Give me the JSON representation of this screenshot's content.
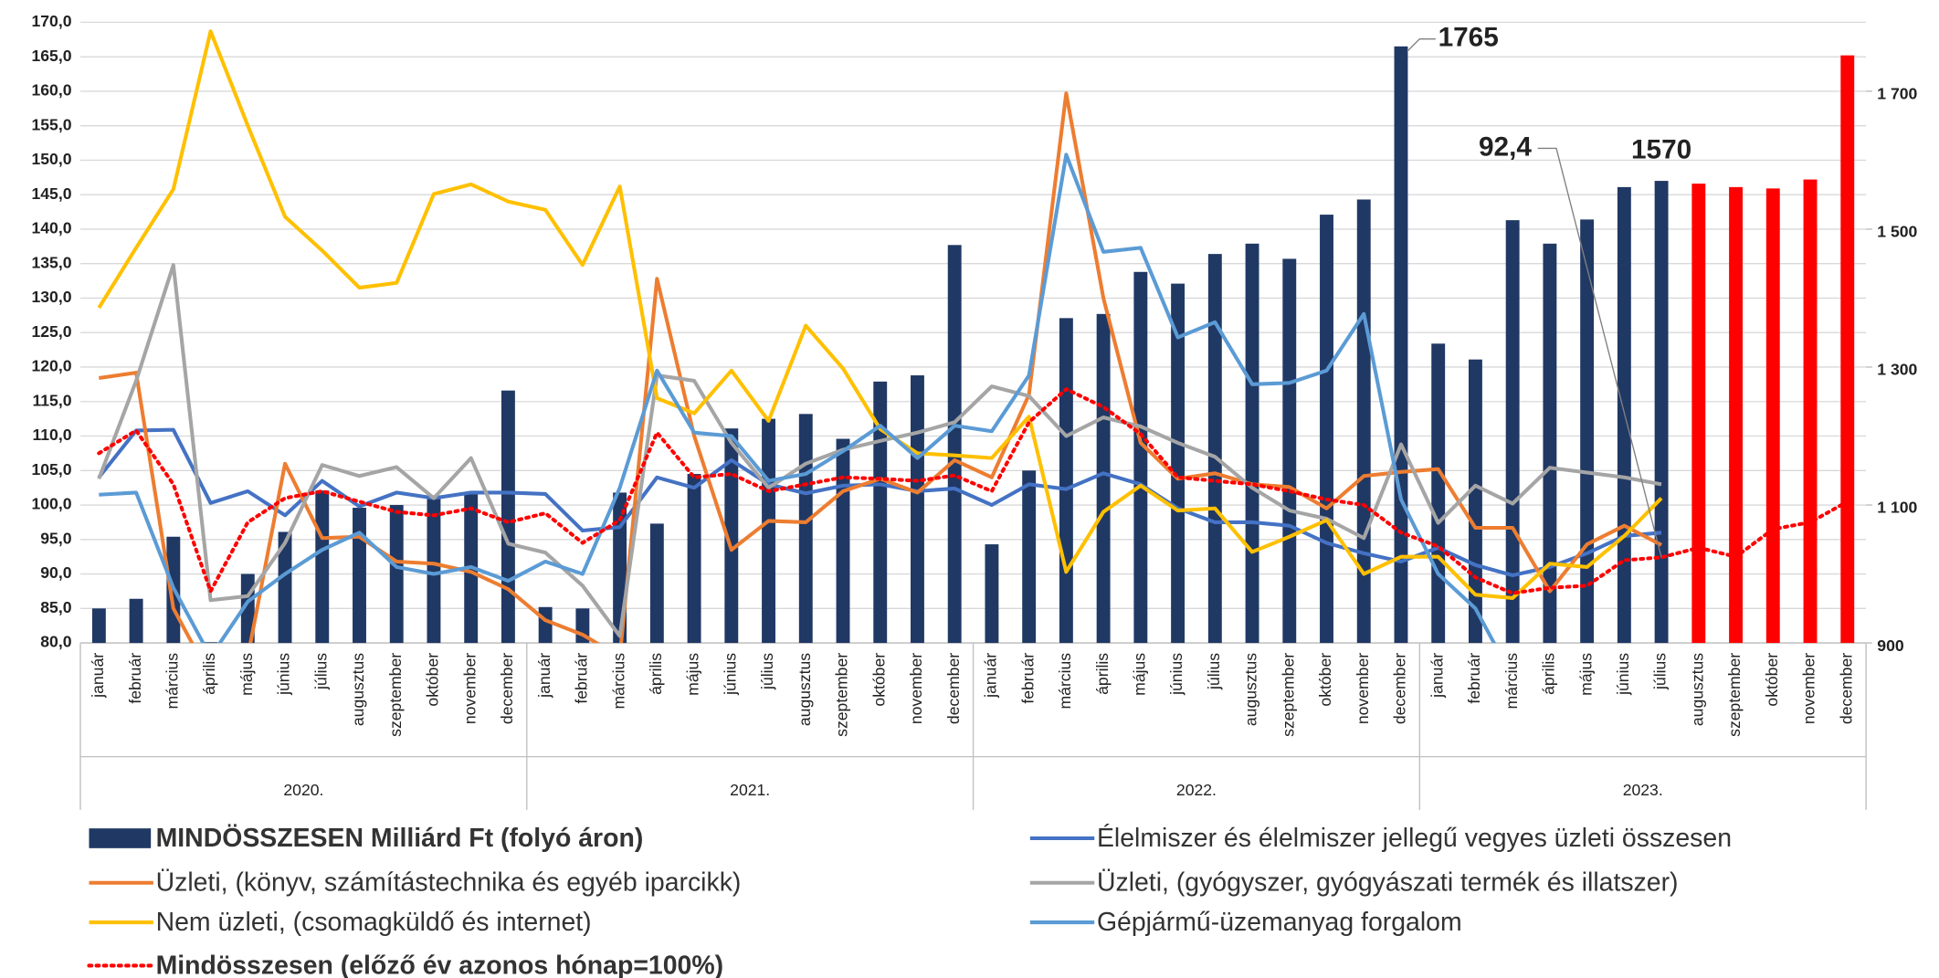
{
  "chart_data": {
    "type": "combo",
    "categories": [
      "január",
      "február",
      "március",
      "április",
      "május",
      "június",
      "július",
      "augusztus",
      "szeptember",
      "október",
      "november",
      "december",
      "január",
      "február",
      "március",
      "április",
      "május",
      "június",
      "július",
      "augusztus",
      "szeptember",
      "október",
      "november",
      "december",
      "január",
      "február",
      "március",
      "április",
      "május",
      "június",
      "július",
      "augusztus",
      "szeptember",
      "október",
      "november",
      "december",
      "január",
      "február",
      "március",
      "április",
      "május",
      "június",
      "július",
      "augusztus",
      "szeptember",
      "október",
      "november",
      "december"
    ],
    "category_groups": [
      "2020.",
      "2021.",
      "2022.",
      "2023."
    ],
    "ylim": [
      80,
      170
    ],
    "yticks": [
      {
        "value": 80,
        "label": "80,0"
      },
      {
        "value": 85,
        "label": "85,0"
      },
      {
        "value": 90,
        "label": "90,0"
      },
      {
        "value": 95,
        "label": "95,0"
      },
      {
        "value": 100,
        "label": "100,0"
      },
      {
        "value": 105,
        "label": "105,0"
      },
      {
        "value": 110,
        "label": "110,0"
      },
      {
        "value": 115,
        "label": "115,0"
      },
      {
        "value": 120,
        "label": "120,0"
      },
      {
        "value": 125,
        "label": "125,0"
      },
      {
        "value": 130,
        "label": "130,0"
      },
      {
        "value": 135,
        "label": "135,0"
      },
      {
        "value": 140,
        "label": "140,0"
      },
      {
        "value": 145,
        "label": "145,0"
      },
      {
        "value": 150,
        "label": "150,0"
      },
      {
        "value": 155,
        "label": "155,0"
      },
      {
        "value": 160,
        "label": "160,0"
      },
      {
        "value": 165,
        "label": "165,0"
      },
      {
        "value": 170,
        "label": "170,0"
      }
    ],
    "y2lim": [
      900,
      1800
    ],
    "y2ticks": [
      900,
      {
        "value": 1100,
        "label": "1 100"
      },
      {
        "value": 1300,
        "label": "1 300"
      },
      {
        "value": 1500,
        "label": "1 500"
      },
      {
        "value": 1700,
        "label": "1 700"
      }
    ],
    "grid": true,
    "series": [
      {
        "name": "MINDÖSSZESEN Milliárd Ft (folyó áron)",
        "type": "bar",
        "axis": "y2",
        "color": "#203864",
        "colors": [
          "#203864",
          "#203864",
          "#203864",
          "#203864",
          "#203864",
          "#203864",
          "#203864",
          "#203864",
          "#203864",
          "#203864",
          "#203864",
          "#203864",
          "#203864",
          "#203864",
          "#203864",
          "#203864",
          "#203864",
          "#203864",
          "#203864",
          "#203864",
          "#203864",
          "#203864",
          "#203864",
          "#203864",
          "#203864",
          "#203864",
          "#203864",
          "#203864",
          "#203864",
          "#203864",
          "#203864",
          "#203864",
          "#203864",
          "#203864",
          "#203864",
          "#203864",
          "#203864",
          "#203864",
          "#203864",
          "#203864",
          "#203864",
          "#203864",
          "#203864",
          "#ff0000",
          "#ff0000",
          "#ff0000",
          "#ff0000",
          "#ff0000"
        ],
        "values": [
          950,
          964,
          1054,
          901,
          1000,
          1061,
          1121,
          1096,
          1100,
          1114,
          1118,
          1266,
          952,
          950,
          1118,
          1073,
          1145,
          1211,
          1225,
          1232,
          1196,
          1279,
          1288,
          1477,
          1043,
          1150,
          1371,
          1377,
          1438,
          1421,
          1464,
          1479,
          1457,
          1521,
          1543,
          1765,
          1334,
          1311,
          1513,
          1479,
          1514,
          1561,
          1570,
          1566,
          1561,
          1559,
          1572,
          1752
        ],
        "value_labels": [
          null,
          null,
          null,
          null,
          null,
          null,
          null,
          null,
          null,
          null,
          null,
          null,
          null,
          null,
          null,
          null,
          null,
          null,
          null,
          null,
          null,
          null,
          null,
          null,
          null,
          null,
          null,
          null,
          null,
          null,
          null,
          null,
          null,
          null,
          null,
          "1765",
          null,
          null,
          null,
          null,
          null,
          null,
          "1570",
          null,
          null,
          null,
          null,
          null
        ]
      },
      {
        "name": "Élelmiszer és élelmiszer jellegű vegyes üzleti összesen",
        "type": "line",
        "color": "#4472c4",
        "values": [
          104,
          110.8,
          110.9,
          100.3,
          102,
          98.5,
          103.5,
          99.8,
          101.8,
          101,
          101.8,
          101.8,
          101.6,
          96.3,
          96.8,
          104,
          102.5,
          106.5,
          103,
          101.7,
          102.8,
          103,
          102,
          102.4,
          100,
          103,
          102.3,
          104.6,
          103,
          99.5,
          97.5,
          97.5,
          97,
          94.5,
          93,
          91.8,
          93.8,
          91.3,
          89.8,
          91,
          93,
          95.5,
          96,
          null,
          null,
          null,
          null,
          null
        ]
      },
      {
        "name": " Üzleti, (könyv, számítástechnika és egyéb iparcikk)",
        "type": "line",
        "color": "#ed7d31",
        "values": [
          118.4,
          119.2,
          85,
          75,
          78,
          106,
          95.2,
          95.4,
          91.8,
          91.5,
          90.3,
          87.8,
          83.3,
          81.2,
          78,
          132.8,
          110,
          93.5,
          97.7,
          97.5,
          102,
          103.8,
          101.8,
          106.5,
          104,
          116,
          159.7,
          130,
          109,
          103.8,
          104.6,
          103,
          102.6,
          99.5,
          104.2,
          104.8,
          105.2,
          96.7,
          96.7,
          87.5,
          94.3,
          97,
          94.2,
          null,
          null,
          null,
          null,
          null
        ]
      },
      {
        "name": "Üzleti, (gyógyszer, gyógyászati termék és illatszer)",
        "type": "line",
        "color": "#a5a5a5",
        "values": [
          103.8,
          118,
          134.8,
          86.2,
          86.8,
          94.5,
          105.8,
          104.2,
          105.5,
          101,
          106.8,
          94.4,
          93.1,
          88.3,
          81,
          118.8,
          118,
          109,
          102.5,
          106,
          108,
          109.3,
          110.5,
          112,
          117.2,
          115.8,
          110,
          112.7,
          111.4,
          109,
          107,
          102.5,
          99.2,
          98,
          95.2,
          108.8,
          97.4,
          102.8,
          100.2,
          105.4,
          104.7,
          104,
          103,
          null,
          null,
          null,
          null,
          null
        ]
      },
      {
        "name": "Nem üzleti, (csomagküldő és internet)",
        "type": "line",
        "color": "#ffc000",
        "values": [
          128.6,
          137.3,
          145.8,
          168.7,
          155,
          141.8,
          136.9,
          131.5,
          132.2,
          145.1,
          146.5,
          144,
          142.8,
          134.8,
          146.2,
          115.5,
          113.3,
          119.5,
          112.2,
          126,
          119.8,
          111,
          107.5,
          107.2,
          106.8,
          112.8,
          90.3,
          99,
          102.8,
          99.2,
          99.5,
          93.2,
          95.4,
          97.8,
          90,
          92.5,
          92.5,
          87,
          86.5,
          91.5,
          91,
          95.5,
          101,
          null,
          null,
          null,
          null,
          null
        ]
      },
      {
        "name": "Gépjármű-üzemanyag forgalom",
        "type": "line",
        "color": "#5b9bd5",
        "values": [
          101.5,
          101.8,
          88,
          78,
          86,
          90,
          93.5,
          96,
          91,
          90,
          91,
          89,
          91.8,
          90,
          102.5,
          119.5,
          110.5,
          110,
          103.5,
          104.5,
          107.8,
          111.5,
          106.8,
          111.5,
          110.7,
          118.8,
          150.8,
          136.7,
          137.3,
          124.3,
          126.5,
          117.5,
          117.7,
          119.5,
          127.7,
          100.8,
          90,
          85,
          75,
          null,
          null,
          null,
          null,
          null,
          null,
          null,
          null,
          null
        ]
      },
      {
        "name": "Mindösszesen (előző év azonos hónap=100%)",
        "type": "line",
        "dashed": true,
        "color": "#ff0000",
        "values": [
          107.5,
          110.8,
          103,
          87.5,
          97.5,
          101,
          102,
          100.5,
          99,
          98.5,
          99.5,
          97.5,
          98.8,
          94.5,
          97.8,
          110.5,
          104,
          104.5,
          102,
          103,
          104,
          103.8,
          103.5,
          104.3,
          102,
          112,
          116.8,
          114.2,
          110.3,
          104,
          103.5,
          103,
          102,
          100.8,
          100,
          96,
          94,
          89.5,
          87.2,
          88,
          88.3,
          92,
          92.4,
          93.8,
          92.5,
          96.5,
          97.5,
          100.5
        ],
        "value_labels": [
          null,
          null,
          null,
          null,
          null,
          null,
          null,
          null,
          null,
          null,
          null,
          null,
          null,
          null,
          null,
          null,
          null,
          null,
          null,
          null,
          null,
          null,
          null,
          null,
          null,
          null,
          null,
          null,
          null,
          null,
          null,
          null,
          null,
          null,
          null,
          null,
          null,
          null,
          null,
          null,
          null,
          null,
          "92,4",
          null,
          null,
          null,
          null,
          null
        ]
      }
    ]
  }
}
